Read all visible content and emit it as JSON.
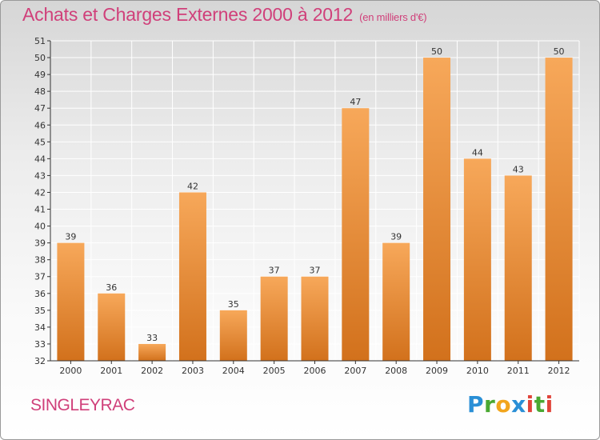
{
  "title": "Achats et Charges Externes 2000 à 2012",
  "unit": "(en milliers d'€)",
  "commune": "SINGLEYRAC",
  "logo": "Proxiti",
  "colors": {
    "title": "#d0407a",
    "bar_light": "#f7a85a",
    "bar_dark": "#d2711c",
    "grid": "#ffffff",
    "axis": "#333333"
  },
  "chart_data": {
    "type": "bar",
    "categories": [
      "2000",
      "2001",
      "2002",
      "2003",
      "2004",
      "2005",
      "2006",
      "2007",
      "2008",
      "2009",
      "2010",
      "2011",
      "2012"
    ],
    "values": [
      39,
      36,
      33,
      42,
      35,
      37,
      37,
      47,
      39,
      50,
      44,
      43,
      50
    ],
    "ylim": [
      32,
      51
    ],
    "yticks": [
      32,
      33,
      34,
      35,
      36,
      37,
      38,
      39,
      40,
      41,
      42,
      43,
      44,
      45,
      46,
      47,
      48,
      49,
      50,
      51
    ],
    "grid": true,
    "legend": "none"
  }
}
